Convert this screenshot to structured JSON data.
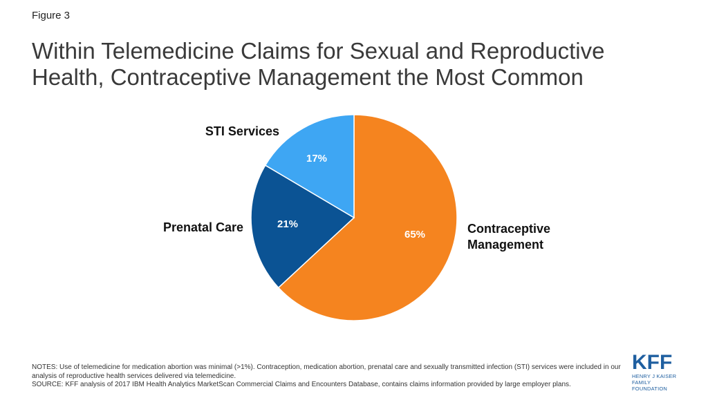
{
  "figure": "Figure 3",
  "title": "Within Telemedicine Claims for Sexual and Reproductive Health, Contraceptive Management the Most Common",
  "chart_data": {
    "type": "pie",
    "categories": [
      "Contraceptive Management",
      "Prenatal Care",
      "STI Services"
    ],
    "values": [
      65,
      21,
      17
    ],
    "value_labels": [
      "65%",
      "21%",
      "17%"
    ],
    "label_lines": [
      [
        "Contraceptive",
        "Management"
      ],
      [
        "Prenatal Care"
      ],
      [
        "STI Services"
      ]
    ],
    "colors": [
      "#f5841f",
      "#0b5394",
      "#3ea6f3"
    ],
    "title": "Within Telemedicine Claims for Sexual and Reproductive Health, Contraceptive Management the Most Common",
    "legend": "none"
  },
  "notes": {
    "notes_text": "NOTES: Use of telemedicine for medication abortion was minimal (>1%). Contraception, medication abortion, prenatal care and sexually transmitted infection (STI) services were included in our analysis of reproductive health services delivered via telemedicine.",
    "source_text": "SOURCE: KFF analysis of 2017 IBM Health Analytics MarketScan Commercial Claims and Encounters Database, contains claims information provided by large employer plans."
  },
  "logo": {
    "mark": "KFF",
    "line1": "HENRY J KAISER",
    "line2": "FAMILY FOUNDATION",
    "color": "#1f5fa0"
  }
}
